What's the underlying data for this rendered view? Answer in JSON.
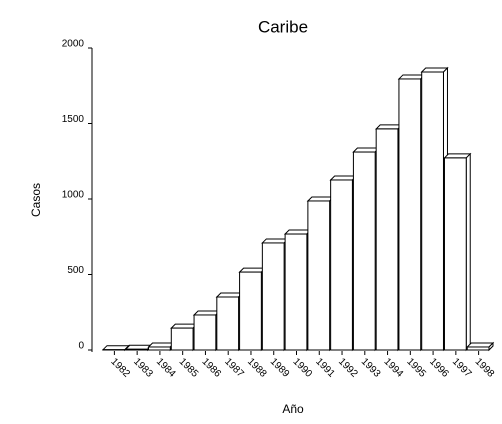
{
  "chart_data": {
    "type": "bar",
    "title": "Caribe",
    "x_label": "Año",
    "y_label": "Casos",
    "categories": [
      "1982",
      "1983",
      "1984",
      "1985",
      "1986",
      "1987",
      "1988",
      "1989",
      "1990",
      "1991",
      "1992",
      "1993",
      "1994",
      "1995",
      "1996",
      "1997",
      "1998"
    ],
    "values": [
      2,
      5,
      20,
      145,
      232,
      351,
      516,
      709,
      768,
      987,
      1126,
      1311,
      1464,
      1795,
      1841,
      1272,
      20
    ],
    "color": "#ffffff",
    "ylim": [
      0,
      2000
    ],
    "yticks": [
      0,
      500,
      1000,
      1500,
      2000
    ],
    "grid": false
  }
}
